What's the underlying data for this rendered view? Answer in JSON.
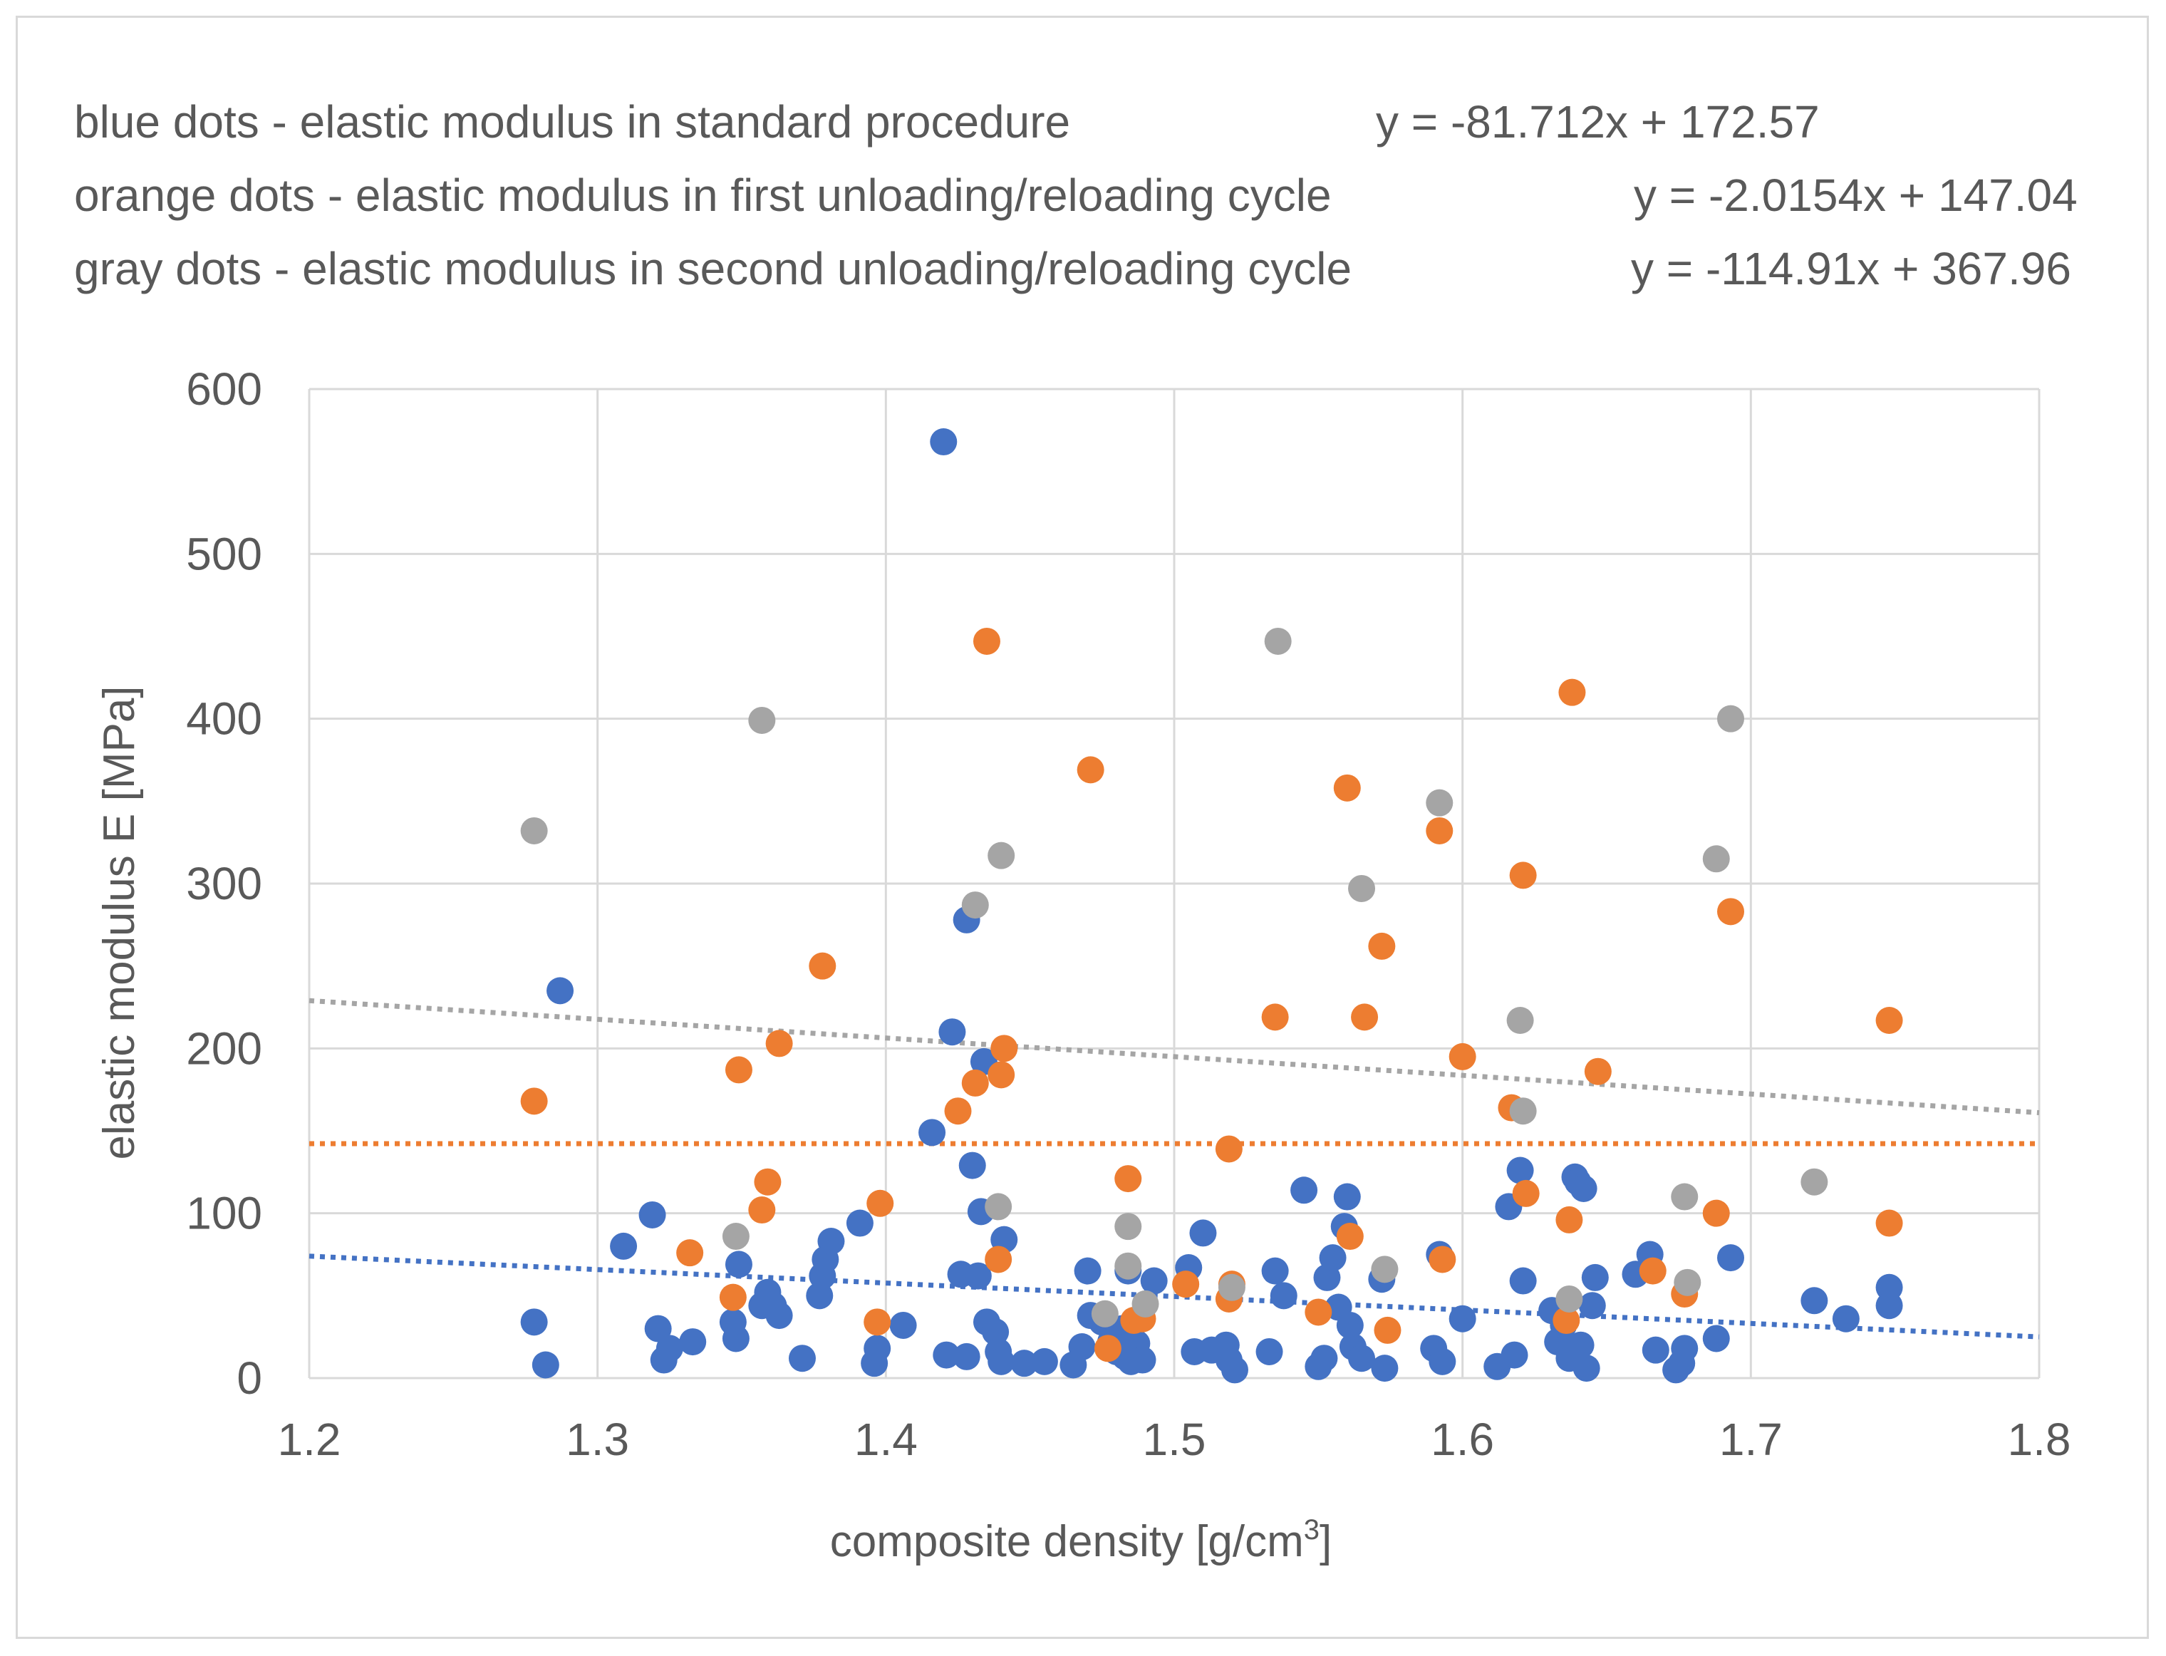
{
  "chart_data": {
    "type": "scatter",
    "title": "",
    "legend_text": [
      "blue dots - elastic modulus in standard procedure",
      "orange dots - elastic modulus in first unloading/reloading cycle",
      "gray dots - elastic modulus in second unloading/reloading cycle"
    ],
    "equations": [
      "y = -81.712x + 172.57",
      "y = -2.0154x + 147.04",
      "y = -114.91x + 367.96"
    ],
    "xlabel_main": "composite density [g/cm",
    "xlabel_sup": "3",
    "xlabel_end": "]",
    "ylabel": "elastic modulus E [MPa]",
    "xlim": [
      1.2,
      1.8
    ],
    "ylim": [
      0,
      600
    ],
    "xticks": [
      1.2,
      1.3,
      1.4,
      1.5,
      1.6,
      1.7,
      1.8
    ],
    "xtick_labels": [
      "1.2",
      "1.3",
      "1.4",
      "1.5",
      "1.6",
      "1.7",
      "1.8"
    ],
    "yticks": [
      0,
      100,
      200,
      300,
      400,
      500,
      600
    ],
    "ytick_labels": [
      "0",
      "100",
      "200",
      "300",
      "400",
      "500",
      "600"
    ],
    "grid": true,
    "series": [
      {
        "name": "blue dots - elastic modulus in standard procedure",
        "color": "#4472c4",
        "trendline": {
          "start": [
            1.2,
            74
          ],
          "end": [
            1.8,
            25
          ]
        },
        "points": [
          [
            1.278,
            34
          ],
          [
            1.282,
            8
          ],
          [
            1.287,
            235
          ],
          [
            1.309,
            80
          ],
          [
            1.319,
            99
          ],
          [
            1.321,
            30
          ],
          [
            1.323,
            11
          ],
          [
            1.325,
            18
          ],
          [
            1.333,
            22
          ],
          [
            1.347,
            34
          ],
          [
            1.348,
            24
          ],
          [
            1.349,
            69
          ],
          [
            1.357,
            44
          ],
          [
            1.359,
            52
          ],
          [
            1.361,
            44
          ],
          [
            1.363,
            38
          ],
          [
            1.371,
            12
          ],
          [
            1.377,
            50
          ],
          [
            1.378,
            62
          ],
          [
            1.379,
            72
          ],
          [
            1.381,
            83
          ],
          [
            1.391,
            94
          ],
          [
            1.396,
            9
          ],
          [
            1.397,
            18
          ],
          [
            1.406,
            32
          ],
          [
            1.416,
            149
          ],
          [
            1.42,
            568
          ],
          [
            1.421,
            14
          ],
          [
            1.423,
            210
          ],
          [
            1.426,
            63
          ],
          [
            1.428,
            278
          ],
          [
            1.428,
            13
          ],
          [
            1.43,
            129
          ],
          [
            1.432,
            62
          ],
          [
            1.433,
            101
          ],
          [
            1.434,
            192
          ],
          [
            1.435,
            34
          ],
          [
            1.438,
            28
          ],
          [
            1.439,
            16
          ],
          [
            1.44,
            10
          ],
          [
            1.441,
            84
          ],
          [
            1.448,
            9
          ],
          [
            1.455,
            10
          ],
          [
            1.465,
            8
          ],
          [
            1.468,
            19
          ],
          [
            1.47,
            65
          ],
          [
            1.471,
            38
          ],
          [
            1.475,
            34
          ],
          [
            1.478,
            22
          ],
          [
            1.48,
            16
          ],
          [
            1.482,
            30
          ],
          [
            1.483,
            13
          ],
          [
            1.484,
            65
          ],
          [
            1.485,
            10
          ],
          [
            1.487,
            21
          ],
          [
            1.489,
            11
          ],
          [
            1.493,
            59
          ],
          [
            1.505,
            67
          ],
          [
            1.507,
            16
          ],
          [
            1.51,
            88
          ],
          [
            1.513,
            17
          ],
          [
            1.518,
            20
          ],
          [
            1.519,
            11
          ],
          [
            1.521,
            5
          ],
          [
            1.533,
            16
          ],
          [
            1.535,
            65
          ],
          [
            1.538,
            50
          ],
          [
            1.545,
            114
          ],
          [
            1.55,
            7
          ],
          [
            1.552,
            12
          ],
          [
            1.553,
            61
          ],
          [
            1.555,
            73
          ],
          [
            1.557,
            43
          ],
          [
            1.559,
            92
          ],
          [
            1.56,
            110
          ],
          [
            1.561,
            32
          ],
          [
            1.562,
            19
          ],
          [
            1.565,
            12
          ],
          [
            1.572,
            60
          ],
          [
            1.573,
            6
          ],
          [
            1.59,
            18
          ],
          [
            1.592,
            75
          ],
          [
            1.593,
            10
          ],
          [
            1.6,
            36
          ],
          [
            1.612,
            7
          ],
          [
            1.616,
            104
          ],
          [
            1.618,
            14
          ],
          [
            1.62,
            126
          ],
          [
            1.621,
            59
          ],
          [
            1.631,
            41
          ],
          [
            1.633,
            22
          ],
          [
            1.635,
            32
          ],
          [
            1.637,
            12
          ],
          [
            1.639,
            122
          ],
          [
            1.64,
            119
          ],
          [
            1.641,
            20
          ],
          [
            1.642,
            115
          ],
          [
            1.643,
            6
          ],
          [
            1.645,
            44
          ],
          [
            1.646,
            61
          ],
          [
            1.66,
            63
          ],
          [
            1.665,
            75
          ],
          [
            1.667,
            17
          ],
          [
            1.674,
            5
          ],
          [
            1.676,
            9
          ],
          [
            1.677,
            18
          ],
          [
            1.688,
            24
          ],
          [
            1.693,
            73
          ],
          [
            1.722,
            47
          ],
          [
            1.733,
            36
          ],
          [
            1.748,
            55
          ],
          [
            1.748,
            44
          ]
        ]
      },
      {
        "name": "orange dots - elastic modulus in first unloading/reloading cycle",
        "color": "#ed7d31",
        "trendline": {
          "start": [
            1.2,
            142.2
          ],
          "end": [
            1.8,
            142.2
          ]
        },
        "points": [
          [
            1.278,
            168
          ],
          [
            1.332,
            76
          ],
          [
            1.347,
            49
          ],
          [
            1.349,
            187
          ],
          [
            1.357,
            102
          ],
          [
            1.359,
            119
          ],
          [
            1.363,
            203
          ],
          [
            1.378,
            250
          ],
          [
            1.397,
            34
          ],
          [
            1.398,
            106
          ],
          [
            1.425,
            162
          ],
          [
            1.431,
            179
          ],
          [
            1.435,
            447
          ],
          [
            1.439,
            72
          ],
          [
            1.44,
            184
          ],
          [
            1.441,
            200
          ],
          [
            1.471,
            369
          ],
          [
            1.477,
            18
          ],
          [
            1.484,
            121
          ],
          [
            1.486,
            35
          ],
          [
            1.489,
            36
          ],
          [
            1.504,
            57
          ],
          [
            1.519,
            48
          ],
          [
            1.52,
            57
          ],
          [
            1.519,
            139
          ],
          [
            1.535,
            219
          ],
          [
            1.55,
            40
          ],
          [
            1.56,
            358
          ],
          [
            1.561,
            86
          ],
          [
            1.566,
            219
          ],
          [
            1.572,
            262
          ],
          [
            1.574,
            29
          ],
          [
            1.592,
            332
          ],
          [
            1.593,
            72
          ],
          [
            1.6,
            195
          ],
          [
            1.617,
            164
          ],
          [
            1.621,
            305
          ],
          [
            1.622,
            112
          ],
          [
            1.637,
            96
          ],
          [
            1.638,
            416
          ],
          [
            1.636,
            35
          ],
          [
            1.647,
            186
          ],
          [
            1.666,
            65
          ],
          [
            1.677,
            51
          ],
          [
            1.688,
            100
          ],
          [
            1.693,
            283
          ],
          [
            1.748,
            94
          ],
          [
            1.748,
            217
          ]
        ]
      },
      {
        "name": "gray dots - elastic modulus in second unloading/reloading cycle",
        "color": "#a5a5a5",
        "trendline": {
          "start": [
            1.2,
            229
          ],
          "end": [
            1.8,
            161
          ]
        },
        "points": [
          [
            1.278,
            332
          ],
          [
            1.348,
            86
          ],
          [
            1.357,
            399
          ],
          [
            1.431,
            287
          ],
          [
            1.439,
            104
          ],
          [
            1.44,
            317
          ],
          [
            1.476,
            39
          ],
          [
            1.484,
            68
          ],
          [
            1.484,
            92
          ],
          [
            1.49,
            45
          ],
          [
            1.52,
            55
          ],
          [
            1.536,
            447
          ],
          [
            1.565,
            297
          ],
          [
            1.573,
            66
          ],
          [
            1.592,
            349
          ],
          [
            1.62,
            217
          ],
          [
            1.621,
            162
          ],
          [
            1.637,
            48
          ],
          [
            1.677,
            110
          ],
          [
            1.678,
            58
          ],
          [
            1.688,
            315
          ],
          [
            1.693,
            400
          ],
          [
            1.722,
            119
          ]
        ]
      }
    ]
  }
}
